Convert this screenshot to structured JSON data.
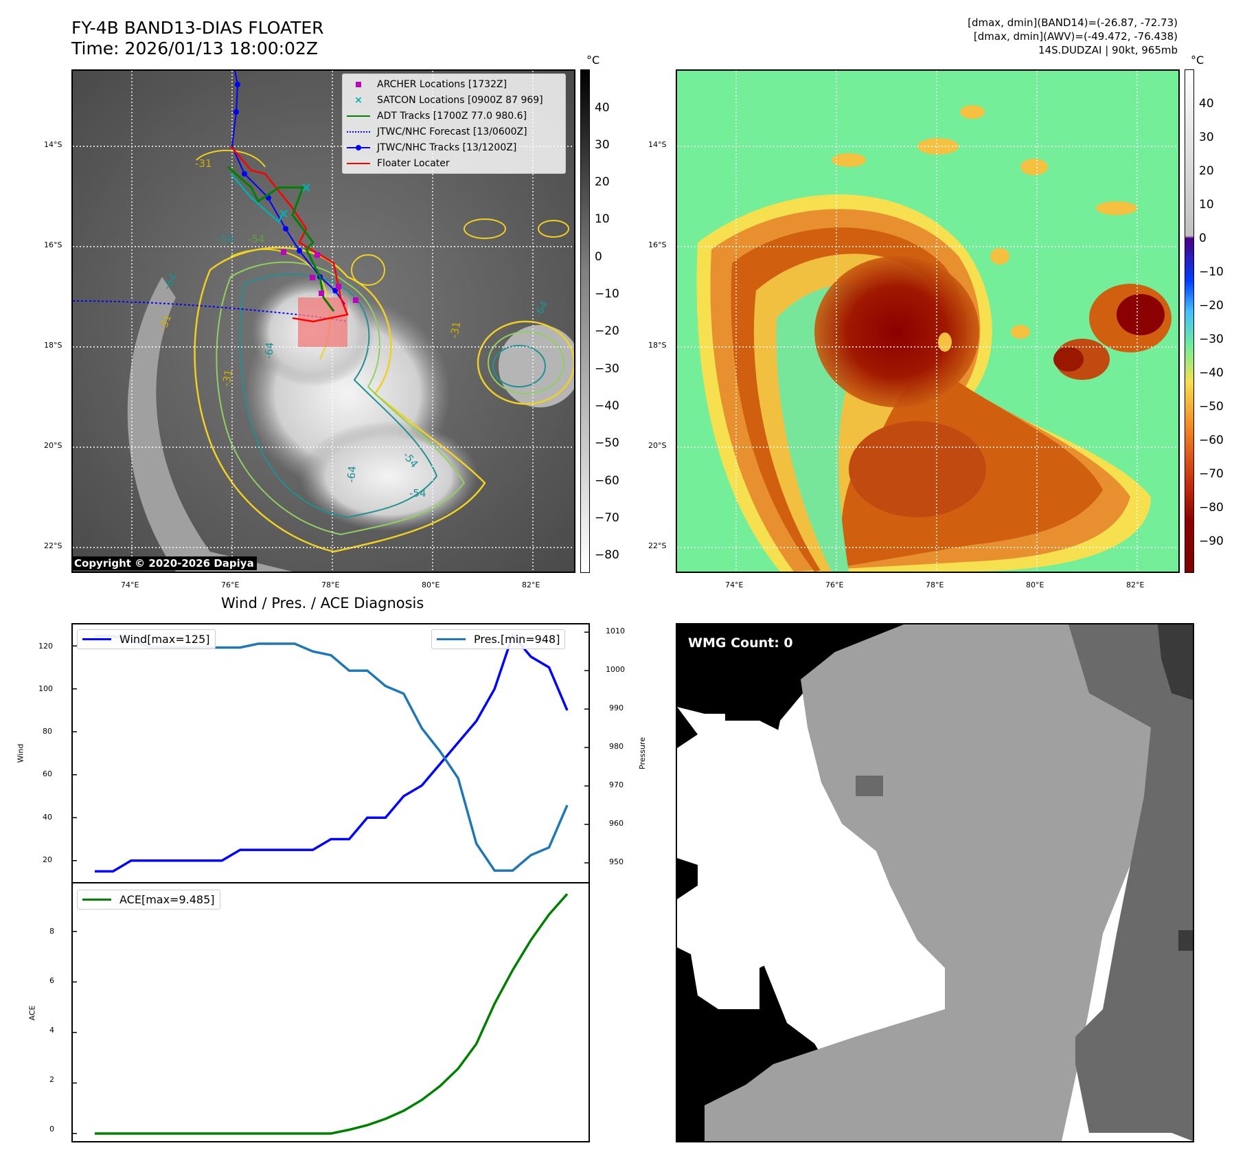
{
  "header": {
    "title_line1": "FY-4B BAND13-DIAS FLOATER",
    "title_line2": "Time: 2026/01/13 18:00:02Z",
    "info_line1": "[dmax, dmin](BAND14)=(-26.87, -72.73)",
    "info_line2": "[dmax, dmin](AWV)=(-49.472, -76.438)",
    "info_line3": "14S.DUDZAI | 90kt, 965mb"
  },
  "map_axes": {
    "lat_labels": [
      "14°S",
      "16°S",
      "18°S",
      "20°S",
      "22°S"
    ],
    "lon_labels": [
      "74°E",
      "76°E",
      "78°E",
      "80°E",
      "82°E"
    ]
  },
  "ir_panel": {
    "unit": "°C",
    "colorbar_ticks": [
      "40",
      "30",
      "20",
      "10",
      "0",
      "−10",
      "−20",
      "−30",
      "−40",
      "−50",
      "−60",
      "−70",
      "−80"
    ],
    "copyright": "Copyright © 2020-2026 Dapiya",
    "contour_labels": [
      "-31",
      "-54",
      "-64",
      "-31",
      "-54",
      "-31",
      "-64",
      "-64",
      "-54",
      "-54",
      "-64",
      "-31"
    ],
    "legend": [
      {
        "label": "ARCHER Locations [1732Z]",
        "color": "#c000c0",
        "marker": "square"
      },
      {
        "label": "SATCON Locations [0900Z 87 969]",
        "color": "#00b0b0",
        "marker": "x"
      },
      {
        "label": "ADT Tracks [1700Z 77.0 980.6]",
        "color": "#008000",
        "marker": "line"
      },
      {
        "label": "JTWC/NHC Forecast [13/0600Z]",
        "color": "#0000ff",
        "marker": "dotted"
      },
      {
        "label": "JTWC/NHC Tracks [13/1200Z]",
        "color": "#0000ff",
        "marker": "line-dot"
      },
      {
        "label": "Floater Locater",
        "color": "#ff0000",
        "marker": "line"
      }
    ]
  },
  "color_panel": {
    "unit": "°C",
    "colorbar_ticks": [
      "40",
      "30",
      "20",
      "10",
      "0",
      "−10",
      "−20",
      "−30",
      "−40",
      "−50",
      "−60",
      "−70",
      "−80",
      "−90"
    ]
  },
  "diag_panel": {
    "title": "Wind / Pres. / ACE Diagnosis",
    "wind_label": "Wind[max=125]",
    "pres_label": "Pres.[min=948]",
    "ace_label": "ACE[max=9.485]",
    "wind_axis": "Wind",
    "pres_axis": "Pressure",
    "ace_axis": "ACE",
    "wind_ticks": [
      "120",
      "100",
      "80",
      "60",
      "40",
      "20"
    ],
    "pres_ticks": [
      "1010",
      "1000",
      "990",
      "980",
      "970",
      "960",
      "950"
    ],
    "ace_ticks": [
      "8",
      "6",
      "4",
      "2",
      "0"
    ],
    "wind_color": "#0000ff",
    "pres_color": "#1f77b4",
    "ace_color": "#008000"
  },
  "wmg_panel": {
    "label": "WMG Count: 0"
  },
  "chart_data": [
    {
      "type": "line",
      "title": "Wind / Pres. / ACE Diagnosis",
      "x": [
        0,
        1,
        2,
        3,
        4,
        5,
        6,
        7,
        8,
        9,
        10,
        11,
        12,
        13,
        14,
        15,
        16,
        17,
        18,
        19,
        20,
        21,
        22,
        23,
        24,
        25,
        26
      ],
      "series": [
        {
          "name": "Wind[max=125]",
          "axis": "Wind",
          "values": [
            15,
            15,
            20,
            20,
            20,
            20,
            20,
            20,
            25,
            25,
            25,
            25,
            25,
            30,
            30,
            40,
            40,
            50,
            55,
            65,
            75,
            85,
            100,
            125,
            115,
            110,
            90
          ]
        },
        {
          "name": "Pres.[min=948]",
          "axis": "Pressure",
          "values": [
            1009,
            1009,
            1008,
            1006,
            1006,
            1006,
            1006,
            1006,
            1006,
            1007,
            1007,
            1007,
            1005,
            1004,
            1000,
            1000,
            996,
            994,
            985,
            979,
            972,
            955,
            948,
            948,
            952,
            954,
            965
          ]
        }
      ],
      "ylim_wind": [
        10,
        130
      ],
      "ylim_pressure": [
        945,
        1012
      ]
    },
    {
      "type": "line",
      "x": [
        0,
        1,
        2,
        3,
        4,
        5,
        6,
        7,
        8,
        9,
        10,
        11,
        12,
        13,
        14,
        15,
        16,
        17,
        18,
        19,
        20,
        21,
        22,
        23,
        24,
        25,
        26
      ],
      "series": [
        {
          "name": "ACE[max=9.485]",
          "axis": "ACE",
          "values": [
            0,
            0,
            0,
            0,
            0,
            0,
            0,
            0,
            0,
            0,
            0,
            0,
            0,
            0,
            0.15,
            0.33,
            0.58,
            0.9,
            1.33,
            1.88,
            2.57,
            3.55,
            5.14,
            6.47,
            7.66,
            8.67,
            9.485
          ]
        }
      ],
      "ylim": [
        -0.3,
        9.9
      ]
    }
  ]
}
